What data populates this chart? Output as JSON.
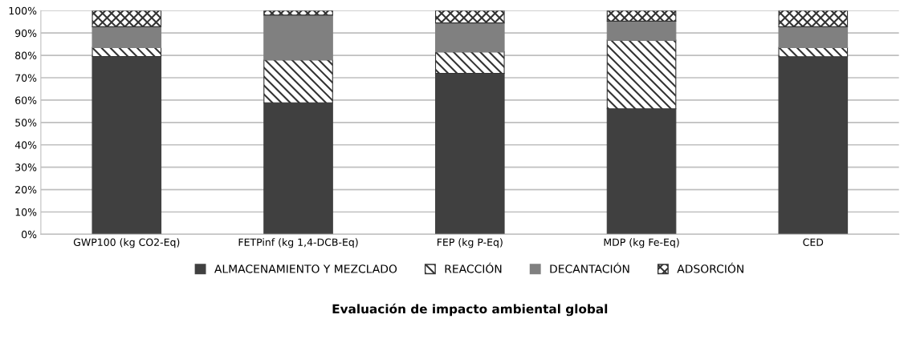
{
  "chart_data": {
    "type": "bar",
    "stacked": true,
    "xlabel": "Evaluación de impacto ambiental global",
    "categories": [
      "GWP100 (kg CO2-Eq)",
      "FETPinf (kg 1,4-DCB-Eq)",
      "FEP (kg P-Eq)",
      "MDP (kg Fe-Eq)",
      "CED"
    ],
    "series": [
      {
        "name": "ALMACENAMIENTO Y MEZCLADO",
        "color": "#404040",
        "values": [
          79.5,
          58.8,
          72.0,
          56.1,
          79.4
        ]
      },
      {
        "name": "REACCIÓN",
        "color": "#333333",
        "values": [
          4.0,
          19.2,
          9.6,
          30.7,
          4.1
        ]
      },
      {
        "name": "DECANTACIÓN",
        "color": "#808080",
        "values": [
          9.3,
          20.0,
          12.9,
          8.5,
          9.3
        ]
      },
      {
        "name": "ADSORCIÓN",
        "color": "#333333",
        "values": [
          7.2,
          2.0,
          5.5,
          4.7,
          7.2
        ]
      }
    ],
    "ylim": [
      0,
      100
    ],
    "yticks": [
      {
        "value": 0,
        "label": "0%"
      },
      {
        "value": 10,
        "label": "10%"
      },
      {
        "value": 20,
        "label": "20%"
      },
      {
        "value": 30,
        "label": "30%"
      },
      {
        "value": 40,
        "label": "40%"
      },
      {
        "value": 50,
        "label": "50%"
      },
      {
        "value": 60,
        "label": "60%"
      },
      {
        "value": 70,
        "label": "70%"
      },
      {
        "value": 80,
        "label": "80%"
      },
      {
        "value": 90,
        "label": "90%"
      },
      {
        "value": 100,
        "label": "100%"
      }
    ],
    "grid": "y",
    "legend": "bottom"
  }
}
